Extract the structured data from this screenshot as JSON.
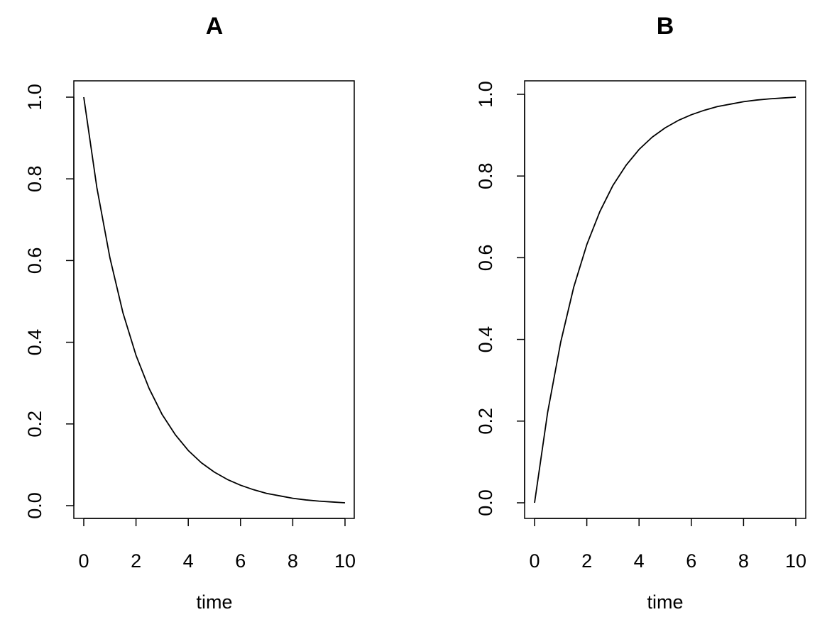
{
  "chart_data": [
    {
      "type": "line",
      "title": "A",
      "xlabel": "time",
      "ylabel": "",
      "xlim": [
        0,
        10
      ],
      "ylim": [
        0,
        1
      ],
      "x_ticks": [
        "0",
        "2",
        "4",
        "6",
        "8",
        "10"
      ],
      "y_ticks": [
        "0.0",
        "0.2",
        "0.4",
        "0.6",
        "0.8",
        "1.0"
      ],
      "grid": false,
      "legend": "none",
      "line_color": "#000000",
      "series": [
        {
          "x": [
            0,
            0.5,
            1,
            1.5,
            2,
            2.5,
            3,
            3.5,
            4,
            4.5,
            5,
            5.5,
            6,
            6.5,
            7,
            7.5,
            8,
            8.5,
            9,
            9.5,
            10
          ],
          "y": [
            1.0,
            0.779,
            0.607,
            0.472,
            0.368,
            0.287,
            0.223,
            0.174,
            0.135,
            0.105,
            0.082,
            0.064,
            0.05,
            0.039,
            0.03,
            0.024,
            0.018,
            0.014,
            0.011,
            0.009,
            0.007
          ]
        }
      ]
    },
    {
      "type": "line",
      "title": "B",
      "xlabel": "time",
      "ylabel": "",
      "xlim": [
        0,
        10
      ],
      "ylim": [
        0,
        1
      ],
      "x_ticks": [
        "0",
        "2",
        "4",
        "6",
        "8",
        "10"
      ],
      "y_ticks": [
        "0.0",
        "0.2",
        "0.4",
        "0.6",
        "0.8",
        "1.0"
      ],
      "grid": false,
      "legend": "none",
      "line_color": "#000000",
      "series": [
        {
          "x": [
            0,
            0.5,
            1,
            1.5,
            2,
            2.5,
            3,
            3.5,
            4,
            4.5,
            5,
            5.5,
            6,
            6.5,
            7,
            7.5,
            8,
            8.5,
            9,
            9.5,
            10
          ],
          "y": [
            0.0,
            0.221,
            0.393,
            0.528,
            0.632,
            0.713,
            0.777,
            0.826,
            0.865,
            0.895,
            0.918,
            0.936,
            0.95,
            0.961,
            0.97,
            0.976,
            0.982,
            0.986,
            0.989,
            0.991,
            0.993
          ]
        }
      ]
    }
  ]
}
